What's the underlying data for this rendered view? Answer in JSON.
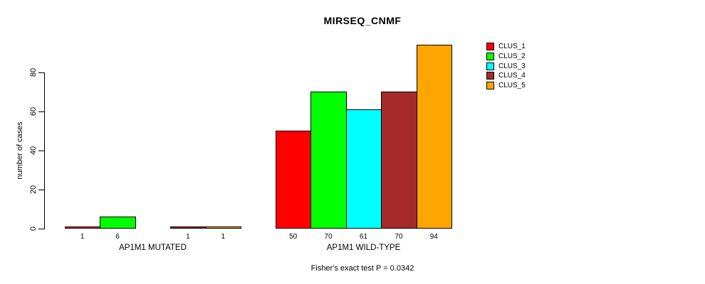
{
  "title": "MIRSEQ_CNMF",
  "footer": {
    "caption": "Fisher's exact test P = 0.0342"
  },
  "chart_data": {
    "type": "bar",
    "title": "MIRSEQ_CNMF",
    "ylabel": "number of cases",
    "xlabel": "",
    "ylim": [
      0,
      97
    ],
    "yticks": [
      0,
      20,
      40,
      60,
      80
    ],
    "grid": false,
    "legend_position": "right-inside-top",
    "categories": [
      "AP1M1 MUTATED",
      "AP1M1 WILD-TYPE"
    ],
    "series": [
      {
        "name": "CLUS_1",
        "color": "#FF0000",
        "values": [
          1,
          50
        ]
      },
      {
        "name": "CLUS_2",
        "color": "#00FF00",
        "values": [
          6,
          70
        ]
      },
      {
        "name": "CLUS_3",
        "color": "#00FFFF",
        "values": [
          0,
          61
        ]
      },
      {
        "name": "CLUS_4",
        "color": "#A52A2A",
        "values": [
          1,
          70
        ]
      },
      {
        "name": "CLUS_5",
        "color": "#FFA500",
        "values": [
          1,
          94
        ]
      }
    ],
    "bar_value_labels": [
      [
        "1",
        "6",
        "",
        "1",
        "1"
      ],
      [
        "50",
        "70",
        "61",
        "70",
        "94"
      ]
    ],
    "annotation": "Fisher's exact test P = 0.0342"
  }
}
